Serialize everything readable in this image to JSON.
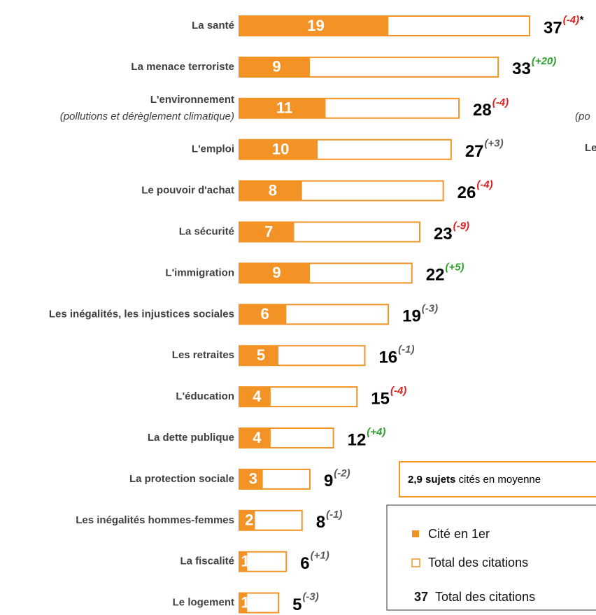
{
  "chart_data": {
    "type": "bar",
    "categories": [
      "La santé",
      "La menace terroriste",
      "L'environnement",
      "L'emploi",
      "Le pouvoir d'achat",
      "La sécurité",
      "L'immigration",
      "Les inégalités, les injustices sociales",
      "Les retraites",
      "L'éducation",
      "La dette publique",
      "La protection sociale",
      "Les inégalités hommes-femmes",
      "La fiscalité",
      "Le logement"
    ],
    "subcategories": {
      "2": "(pollutions et dérèglement climatique)"
    },
    "series": [
      {
        "name": "Cité en 1er",
        "color": "#f39325",
        "values": [
          19,
          9,
          11,
          10,
          8,
          7,
          9,
          6,
          5,
          4,
          4,
          3,
          2,
          1,
          1
        ]
      },
      {
        "name": "Total des citations",
        "color": "#f39325",
        "values": [
          37,
          33,
          28,
          27,
          26,
          23,
          22,
          19,
          16,
          15,
          12,
          9,
          8,
          6,
          5
        ]
      }
    ],
    "changes": [
      {
        "label": "(-4)",
        "color": "#e02020"
      },
      {
        "label": "(+20)",
        "color": "#2ca02c"
      },
      {
        "label": "(-4)",
        "color": "#e02020"
      },
      {
        "label": "(+3)",
        "color": "#595959"
      },
      {
        "label": "(-4)",
        "color": "#e02020"
      },
      {
        "label": "(-9)",
        "color": "#e02020"
      },
      {
        "label": "(+5)",
        "color": "#2ca02c"
      },
      {
        "label": "(-3)",
        "color": "#595959"
      },
      {
        "label": "(-1)",
        "color": "#595959"
      },
      {
        "label": "(-4)",
        "color": "#e02020"
      },
      {
        "label": "(+4)",
        "color": "#2ca02c"
      },
      {
        "label": "(-2)",
        "color": "#595959"
      },
      {
        "label": "(-1)",
        "color": "#595959"
      },
      {
        "label": "(+1)",
        "color": "#595959"
      },
      {
        "label": "(-3)",
        "color": "#595959"
      }
    ],
    "footnote_mark": "*",
    "average_box": {
      "bold": "2,9 sujets",
      "text": " cités en moyenne"
    },
    "legend_extra": {
      "value": "37",
      "text": "Total des citations"
    },
    "clipped_texts": [
      "(po",
      "Le"
    ]
  }
}
